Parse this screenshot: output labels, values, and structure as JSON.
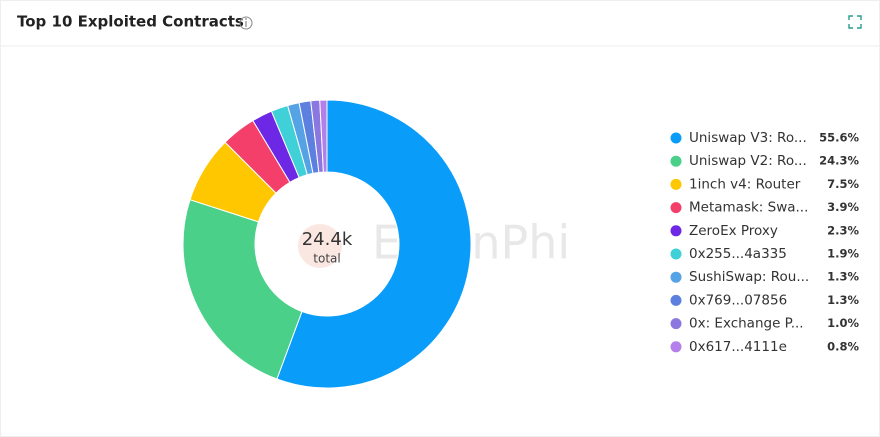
{
  "chart_data": {
    "type": "pie",
    "title": "Top 10 Exploited Contracts",
    "center_value": "24.4k",
    "center_caption": "total",
    "watermark": "EigenPhi",
    "categories": [
      "Uniswap V3: Ro...",
      "Uniswap V2: Ro...",
      "1inch v4: Router",
      "Metamask: Swa...",
      "ZeroEx Proxy",
      "0x255...4a335",
      "SushiSwap: Rou...",
      "0x769...07856",
      "0x: Exchange P...",
      "0x617...4111e"
    ],
    "values": [
      55.6,
      24.3,
      7.5,
      3.9,
      2.3,
      1.9,
      1.3,
      1.3,
      1.0,
      0.8
    ],
    "value_labels": [
      "55.6%",
      "24.3%",
      "7.5%",
      "3.9%",
      "2.3%",
      "1.9%",
      "1.3%",
      "1.3%",
      "1.0%",
      "0.8%"
    ],
    "colors": [
      "#0a9cf9",
      "#4bd08a",
      "#fec700",
      "#f33f6a",
      "#6d28e6",
      "#3fd0d8",
      "#55a3e4",
      "#5c7fe0",
      "#8a77df",
      "#b47fea"
    ],
    "donut": true
  }
}
